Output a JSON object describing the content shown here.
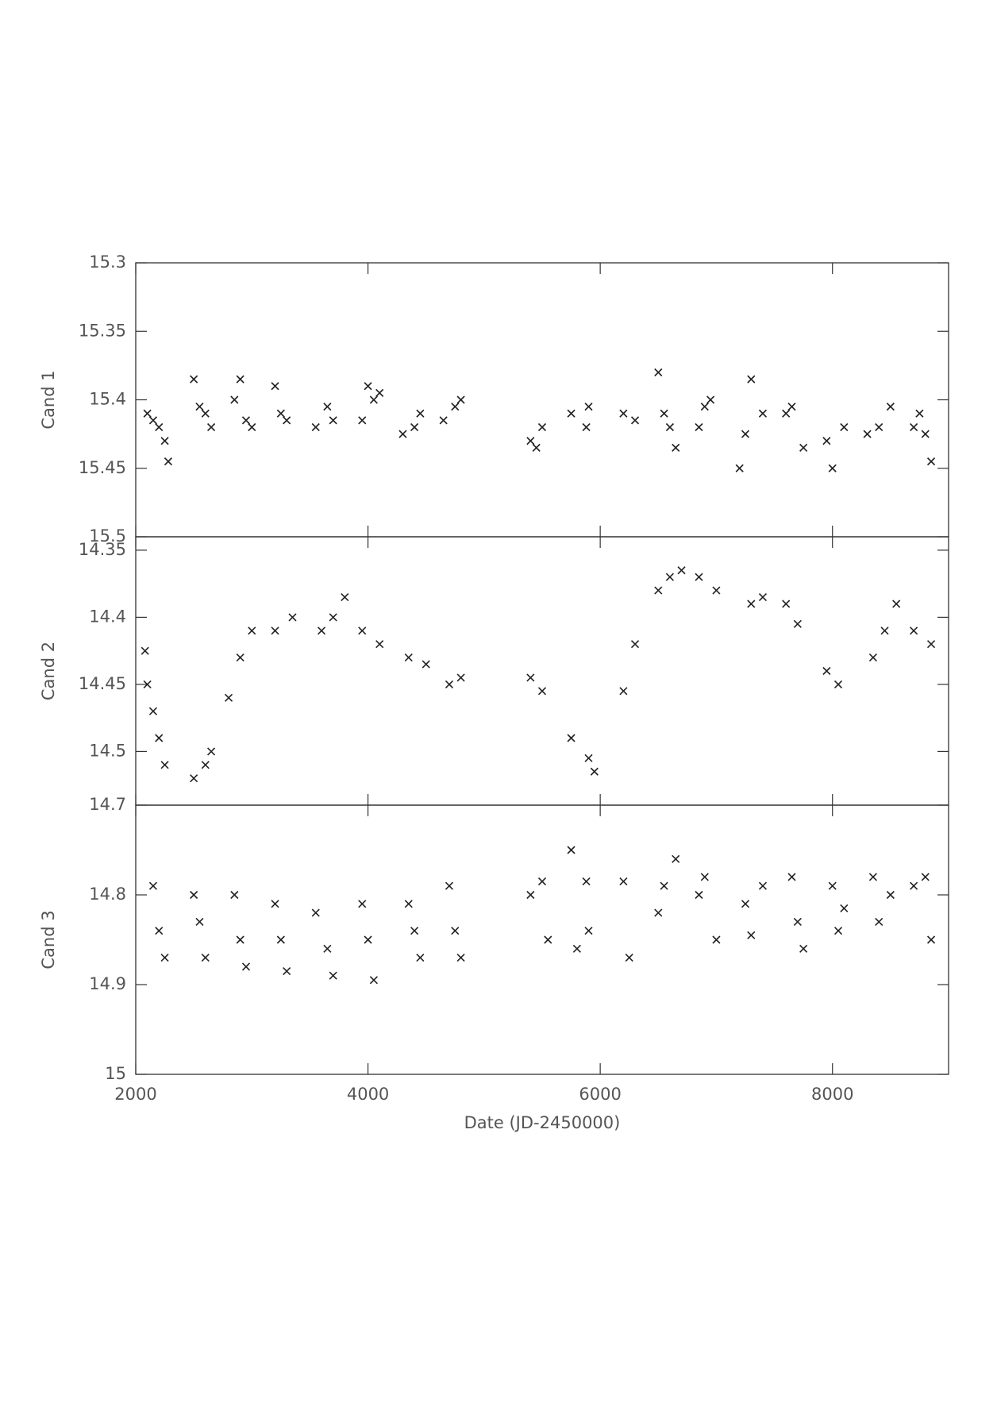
{
  "chart_data": [
    {
      "type": "scatter",
      "ylabel": "Cand 1",
      "marker": "x",
      "color": "#222222",
      "y_inverted": true,
      "xlim": [
        2000,
        9000
      ],
      "xticks": [
        2000,
        4000,
        6000,
        8000
      ],
      "ylim": [
        15.3,
        15.5
      ],
      "yticks": [
        15.3,
        15.35,
        15.4,
        15.45,
        15.5
      ],
      "x": [
        2100,
        2150,
        2200,
        2250,
        2280,
        2500,
        2550,
        2600,
        2650,
        2850,
        2900,
        2950,
        3000,
        3200,
        3250,
        3300,
        3550,
        3650,
        3700,
        3950,
        4000,
        4050,
        4100,
        4300,
        4400,
        4450,
        4650,
        4750,
        4800,
        5400,
        5450,
        5500,
        5750,
        5880,
        5900,
        6200,
        6300,
        6500,
        6550,
        6600,
        6650,
        6850,
        6900,
        6950,
        7200,
        7250,
        7300,
        7400,
        7600,
        7650,
        7750,
        7950,
        8000,
        8100,
        8300,
        8400,
        8500,
        8700,
        8750,
        8800,
        8850
      ],
      "y": [
        15.41,
        15.415,
        15.42,
        15.43,
        15.445,
        15.385,
        15.405,
        15.41,
        15.42,
        15.4,
        15.385,
        15.415,
        15.42,
        15.39,
        15.41,
        15.415,
        15.42,
        15.405,
        15.415,
        15.415,
        15.39,
        15.4,
        15.395,
        15.425,
        15.42,
        15.41,
        15.415,
        15.405,
        15.4,
        15.43,
        15.435,
        15.42,
        15.41,
        15.42,
        15.405,
        15.41,
        15.415,
        15.38,
        15.41,
        15.42,
        15.435,
        15.42,
        15.405,
        15.4,
        15.45,
        15.425,
        15.385,
        15.41,
        15.41,
        15.405,
        15.435,
        15.43,
        15.45,
        15.42,
        15.425,
        15.42,
        15.405,
        15.42,
        15.41,
        15.425,
        15.445
      ]
    },
    {
      "type": "scatter",
      "ylabel": "Cand 2",
      "marker": "x",
      "color": "#222222",
      "y_inverted": true,
      "xlim": [
        2000,
        9000
      ],
      "xticks": [
        2000,
        4000,
        6000,
        8000
      ],
      "ylim": [
        14.34,
        14.54
      ],
      "yticks": [
        14.35,
        14.4,
        14.45,
        14.5
      ],
      "x": [
        2080,
        2100,
        2150,
        2200,
        2250,
        2500,
        2600,
        2650,
        2800,
        2900,
        3000,
        3200,
        3350,
        3600,
        3700,
        3800,
        3950,
        4100,
        4350,
        4500,
        4700,
        4800,
        5400,
        5500,
        5750,
        5900,
        5950,
        6200,
        6300,
        6500,
        6600,
        6700,
        6850,
        7000,
        7300,
        7400,
        7600,
        7700,
        7950,
        8050,
        8350,
        8450,
        8550,
        8700,
        8850
      ],
      "y": [
        14.425,
        14.45,
        14.47,
        14.49,
        14.51,
        14.52,
        14.51,
        14.5,
        14.46,
        14.43,
        14.41,
        14.41,
        14.4,
        14.41,
        14.4,
        14.385,
        14.41,
        14.42,
        14.43,
        14.435,
        14.45,
        14.445,
        14.445,
        14.455,
        14.49,
        14.505,
        14.515,
        14.455,
        14.42,
        14.38,
        14.37,
        14.365,
        14.37,
        14.38,
        14.39,
        14.385,
        14.39,
        14.405,
        14.44,
        14.45,
        14.43,
        14.41,
        14.39,
        14.41,
        14.42
      ]
    },
    {
      "type": "scatter",
      "ylabel": "Cand 3",
      "xlabel": "Date (JD-2450000)",
      "marker": "x",
      "color": "#222222",
      "y_inverted": true,
      "xlim": [
        2000,
        9000
      ],
      "xticks": [
        2000,
        4000,
        6000,
        8000
      ],
      "ylim": [
        14.7,
        15
      ],
      "yticks": [
        14.7,
        14.8,
        14.9,
        15
      ],
      "x": [
        2150,
        2200,
        2250,
        2500,
        2550,
        2600,
        2850,
        2900,
        2950,
        3200,
        3250,
        3300,
        3550,
        3650,
        3700,
        3950,
        4000,
        4050,
        4350,
        4400,
        4450,
        4700,
        4750,
        4800,
        5400,
        5500,
        5550,
        5750,
        5800,
        5880,
        5900,
        6200,
        6250,
        6500,
        6550,
        6650,
        6850,
        6900,
        7000,
        7250,
        7300,
        7400,
        7650,
        7700,
        7750,
        8000,
        8050,
        8100,
        8350,
        8400,
        8500,
        8700,
        8800,
        8850
      ],
      "y": [
        14.79,
        14.84,
        14.87,
        14.8,
        14.83,
        14.87,
        14.8,
        14.85,
        14.88,
        14.81,
        14.85,
        14.885,
        14.82,
        14.86,
        14.89,
        14.81,
        14.85,
        14.895,
        14.81,
        14.84,
        14.87,
        14.79,
        14.84,
        14.87,
        14.8,
        14.785,
        14.85,
        14.75,
        14.86,
        14.785,
        14.84,
        14.785,
        14.87,
        14.82,
        14.79,
        14.76,
        14.8,
        14.78,
        14.85,
        14.81,
        14.845,
        14.79,
        14.78,
        14.83,
        14.86,
        14.79,
        14.84,
        14.815,
        14.78,
        14.83,
        14.8,
        14.79,
        14.78,
        14.85
      ]
    }
  ]
}
